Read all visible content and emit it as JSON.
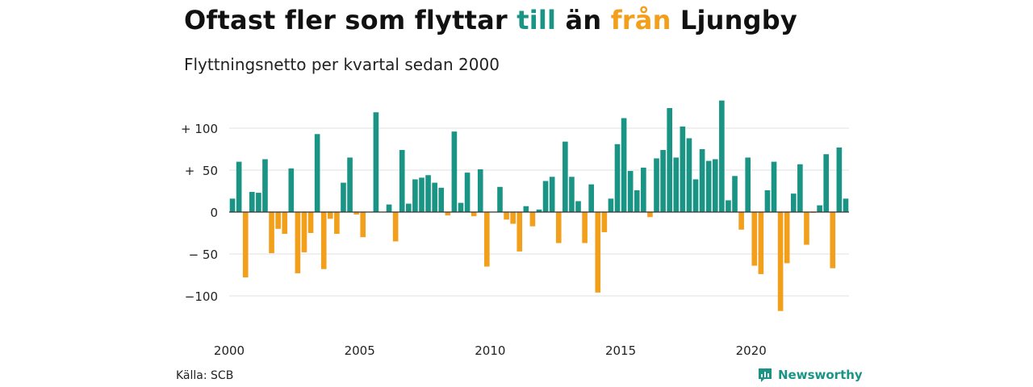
{
  "title": {
    "part1": "Oftast fler som flyttar ",
    "pos_word": "till",
    "part2": " än ",
    "neg_word": "från",
    "part3": " Ljungby"
  },
  "subtitle": "Flyttningsnetto per kvartal sedan 2000",
  "source": "Källa: SCB",
  "brand": "Newsworthy",
  "colors": {
    "positive": "#1a9585",
    "negative": "#f29f1c",
    "grid": "#e0e0e0",
    "axis": "#333333"
  },
  "chart_data": {
    "type": "bar",
    "title": "Oftast fler som flyttar till än från Ljungby",
    "subtitle": "Flyttningsnetto per kvartal sedan 2000",
    "x_start_year": 2000,
    "periods_per_year": 4,
    "x_ticks": [
      "2000",
      "2005",
      "2010",
      "2015",
      "2020"
    ],
    "y_ticks": [
      {
        "value": 100,
        "label": "+ 100"
      },
      {
        "value": 50,
        "label": "+  50"
      },
      {
        "value": 0,
        "label": "0"
      },
      {
        "value": -50,
        "label": "− 50"
      },
      {
        "value": -100,
        "label": "−100"
      }
    ],
    "ylim": [
      -125,
      135
    ],
    "grid": true,
    "values": [
      16,
      60,
      -78,
      24,
      23,
      63,
      -49,
      -20,
      -26,
      52,
      -73,
      -48,
      -25,
      93,
      -68,
      -8,
      -26,
      35,
      65,
      -3,
      -30,
      0,
      119,
      0,
      9,
      -35,
      74,
      10,
      39,
      41,
      44,
      35,
      29,
      -4,
      96,
      11,
      47,
      -5,
      51,
      -65,
      0,
      30,
      -9,
      -14,
      -47,
      7,
      -17,
      3,
      37,
      42,
      -37,
      84,
      42,
      13,
      -37,
      33,
      -96,
      -24,
      16,
      81,
      112,
      49,
      26,
      53,
      -6,
      64,
      74,
      124,
      65,
      102,
      88,
      39,
      75,
      61,
      63,
      133,
      14,
      43,
      -21,
      65,
      -64,
      -74,
      26,
      60,
      -118,
      -61,
      22,
      57,
      -39,
      -1,
      8,
      69,
      -67,
      77,
      16
    ]
  }
}
